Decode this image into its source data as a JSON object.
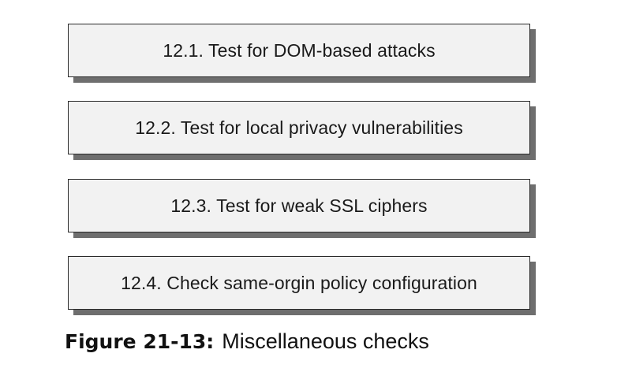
{
  "steps": [
    {
      "label": "12.1. Test for DOM-based attacks"
    },
    {
      "label": "12.2. Test for local privacy vulnerabilities"
    },
    {
      "label": "12.3. Test for weak SSL ciphers"
    },
    {
      "label": "12.4. Check same-orgin policy configuration"
    }
  ],
  "caption": {
    "label": "Figure 21-13:",
    "text": "Miscellaneous checks"
  }
}
